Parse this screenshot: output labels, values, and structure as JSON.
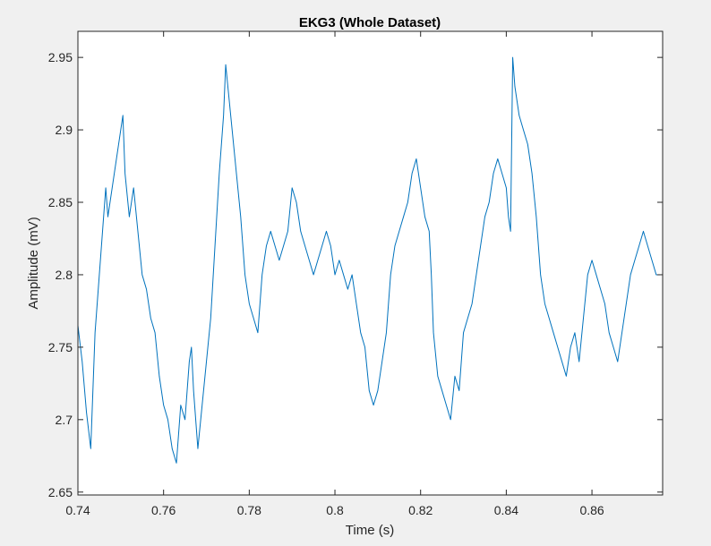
{
  "chart_data": {
    "type": "line",
    "title": "EKG3 (Whole Dataset)",
    "xlabel": "Time (s)",
    "ylabel": "Amplitude (mV)",
    "xlim": [
      0.74,
      0.8765
    ],
    "ylim": [
      2.648,
      2.968
    ],
    "xticks": [
      0.74,
      0.76,
      0.78,
      0.8,
      0.82,
      0.84,
      0.86
    ],
    "xtick_labels": [
      "0.74",
      "0.76",
      "0.78",
      "0.8",
      "0.82",
      "0.84",
      "0.86"
    ],
    "yticks": [
      2.65,
      2.7,
      2.75,
      2.8,
      2.85,
      2.9,
      2.95
    ],
    "ytick_labels": [
      "2.65",
      "2.7",
      "2.75",
      "2.8",
      "2.85",
      "2.9",
      "2.95"
    ],
    "grid": false,
    "series": [
      {
        "color": "#0072bd",
        "x": [
          0.74,
          0.741,
          0.742,
          0.743,
          0.744,
          0.745,
          0.746,
          0.7465,
          0.747,
          0.748,
          0.749,
          0.75,
          0.7505,
          0.751,
          0.752,
          0.753,
          0.754,
          0.755,
          0.756,
          0.757,
          0.758,
          0.759,
          0.76,
          0.761,
          0.762,
          0.763,
          0.764,
          0.765,
          0.766,
          0.7665,
          0.767,
          0.768,
          0.769,
          0.77,
          0.771,
          0.772,
          0.773,
          0.774,
          0.7745,
          0.775,
          0.776,
          0.777,
          0.778,
          0.779,
          0.78,
          0.781,
          0.782,
          0.783,
          0.784,
          0.785,
          0.786,
          0.787,
          0.788,
          0.789,
          0.79,
          0.791,
          0.792,
          0.793,
          0.794,
          0.795,
          0.796,
          0.797,
          0.798,
          0.799,
          0.8,
          0.801,
          0.802,
          0.803,
          0.804,
          0.805,
          0.806,
          0.807,
          0.808,
          0.809,
          0.81,
          0.811,
          0.812,
          0.813,
          0.814,
          0.815,
          0.816,
          0.817,
          0.818,
          0.819,
          0.82,
          0.821,
          0.822,
          0.8225,
          0.823,
          0.824,
          0.825,
          0.826,
          0.827,
          0.828,
          0.829,
          0.83,
          0.831,
          0.832,
          0.833,
          0.834,
          0.835,
          0.836,
          0.837,
          0.838,
          0.839,
          0.84,
          0.8405,
          0.841,
          0.8415,
          0.842,
          0.843,
          0.844,
          0.845,
          0.846,
          0.847,
          0.848,
          0.849,
          0.85,
          0.851,
          0.852,
          0.853,
          0.854,
          0.855,
          0.856,
          0.857,
          0.858,
          0.859,
          0.86,
          0.861,
          0.862,
          0.863,
          0.864,
          0.865,
          0.866,
          0.867,
          0.868,
          0.869,
          0.87,
          0.871,
          0.872,
          0.873,
          0.874,
          0.875,
          0.876
        ],
        "y": [
          2.765,
          2.74,
          2.705,
          2.68,
          2.76,
          2.8,
          2.84,
          2.86,
          2.84,
          2.86,
          2.88,
          2.9,
          2.91,
          2.87,
          2.84,
          2.86,
          2.83,
          2.8,
          2.79,
          2.77,
          2.76,
          2.73,
          2.71,
          2.7,
          2.68,
          2.67,
          2.71,
          2.7,
          2.74,
          2.75,
          2.72,
          2.68,
          2.71,
          2.74,
          2.77,
          2.82,
          2.87,
          2.91,
          2.945,
          2.93,
          2.9,
          2.87,
          2.84,
          2.8,
          2.78,
          2.77,
          2.76,
          2.8,
          2.82,
          2.83,
          2.82,
          2.81,
          2.82,
          2.83,
          2.86,
          2.85,
          2.83,
          2.82,
          2.81,
          2.8,
          2.81,
          2.82,
          2.83,
          2.82,
          2.8,
          2.81,
          2.8,
          2.79,
          2.8,
          2.78,
          2.76,
          2.75,
          2.72,
          2.71,
          2.72,
          2.74,
          2.76,
          2.8,
          2.82,
          2.83,
          2.84,
          2.85,
          2.87,
          2.88,
          2.86,
          2.84,
          2.83,
          2.8,
          2.76,
          2.73,
          2.72,
          2.71,
          2.7,
          2.73,
          2.72,
          2.76,
          2.77,
          2.78,
          2.8,
          2.82,
          2.84,
          2.85,
          2.87,
          2.88,
          2.87,
          2.86,
          2.84,
          2.83,
          2.95,
          2.93,
          2.91,
          2.9,
          2.89,
          2.87,
          2.84,
          2.8,
          2.78,
          2.77,
          2.76,
          2.75,
          2.74,
          2.73,
          2.75,
          2.76,
          2.74,
          2.77,
          2.8,
          2.81,
          2.8,
          2.79,
          2.78,
          2.76,
          2.75,
          2.74,
          2.76,
          2.78,
          2.8,
          2.81,
          2.82,
          2.83,
          2.82,
          2.81,
          2.8,
          2.8
        ]
      }
    ]
  }
}
